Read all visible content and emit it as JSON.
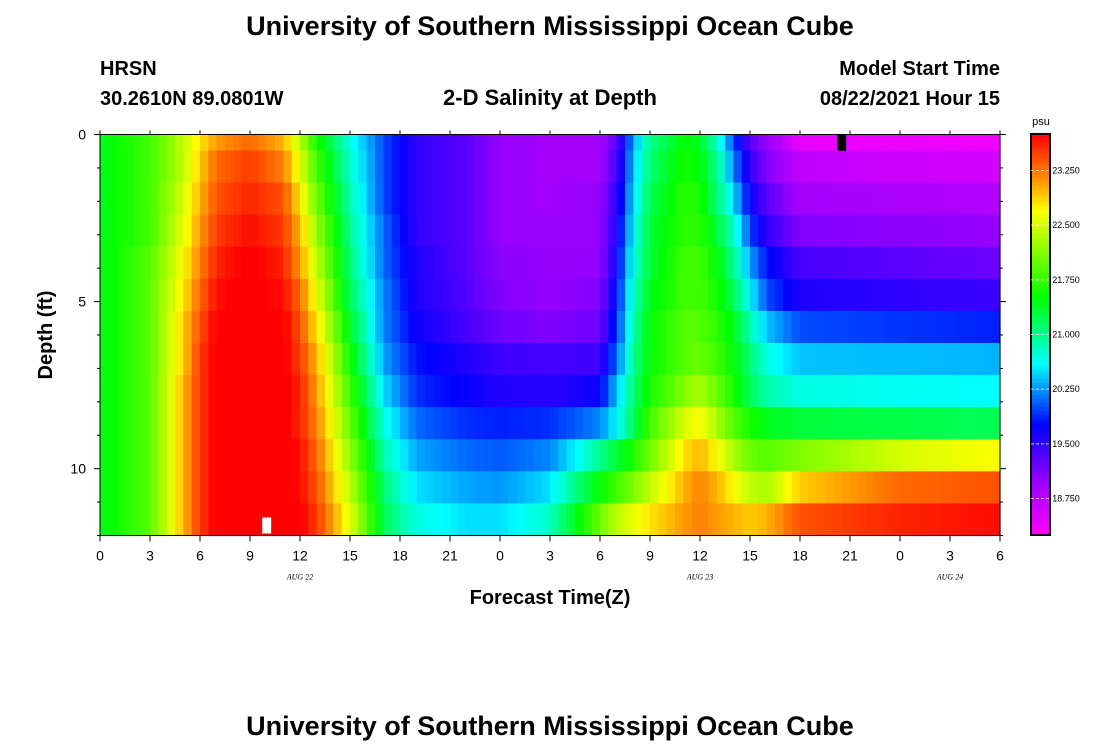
{
  "header": {
    "title": "University of Southern Mississippi Ocean Cube",
    "station": "HRSN",
    "location": "30.2610N  89.0801W",
    "plot_title": "2-D Salinity at Depth",
    "model_label": "Model Start Time",
    "model_time": "08/22/2021 Hour 15"
  },
  "footer": {
    "title": "University of Southern Mississippi Ocean Cube"
  },
  "chart_data": {
    "type": "heatmap",
    "title": "2-D Salinity at Depth",
    "xlabel": "Forecast Time(Z)",
    "ylabel": "Depth (ft)",
    "x_hours_range": [
      0,
      54
    ],
    "x_tick_labels": [
      "0",
      "3",
      "6",
      "9",
      "12",
      "15",
      "18",
      "21",
      "0",
      "3",
      "6",
      "9",
      "12",
      "15",
      "18",
      "21",
      "0",
      "3",
      "6"
    ],
    "day_labels": [
      {
        "label": "AUG  22",
        "hour": 12
      },
      {
        "label": "AUG  23",
        "hour": 36
      },
      {
        "label": "AUG  24",
        "hour": 51
      }
    ],
    "y_range_ft": [
      0,
      12
    ],
    "y_ticks": [
      0,
      5,
      10
    ],
    "colorbar": {
      "unit": "psu",
      "range": [
        18.25,
        23.75
      ],
      "tick_labels": [
        "23.250",
        "22.500",
        "21.750",
        "21.000",
        "20.250",
        "19.500",
        "18.750"
      ],
      "tick_values": [
        23.25,
        22.5,
        21.75,
        21.0,
        20.25,
        19.5,
        18.75
      ]
    },
    "markers": [
      {
        "name": "model-start-marker",
        "hour": 10,
        "depth_ft": 11.7,
        "color": "#ffffff"
      },
      {
        "name": "current-time-marker",
        "hour": 44.5,
        "depth_ft": 0.25,
        "color": "#000000"
      }
    ],
    "depth_rows_ft": [
      0,
      1,
      2,
      3,
      4,
      5,
      6,
      7,
      8,
      9,
      10,
      11,
      12
    ],
    "profiles": [
      [
        [
          0,
          21.4
        ],
        [
          3,
          21.8
        ],
        [
          5,
          22.4
        ],
        [
          6,
          22.8
        ],
        [
          7,
          23.1
        ],
        [
          9,
          23.3
        ],
        [
          11,
          23.0
        ],
        [
          12,
          22.4
        ],
        [
          13,
          21.6
        ],
        [
          15,
          20.7
        ],
        [
          17,
          20.0
        ],
        [
          19,
          19.5
        ],
        [
          22,
          19.3
        ],
        [
          24,
          19.0
        ],
        [
          27,
          18.9
        ],
        [
          30,
          18.9
        ],
        [
          31,
          19.3
        ],
        [
          32,
          20.3
        ],
        [
          33,
          21.0
        ],
        [
          35,
          21.5
        ],
        [
          36,
          21.4
        ],
        [
          37,
          20.8
        ],
        [
          38,
          20.0
        ],
        [
          39,
          19.3
        ],
        [
          42,
          18.4
        ],
        [
          54,
          18.35
        ]
      ],
      [
        [
          0,
          21.4
        ],
        [
          3,
          21.8
        ],
        [
          5,
          22.4
        ],
        [
          6,
          22.9
        ],
        [
          7,
          23.3
        ],
        [
          9,
          23.5
        ],
        [
          11,
          23.2
        ],
        [
          12,
          22.6
        ],
        [
          13,
          21.8
        ],
        [
          15,
          20.8
        ],
        [
          17,
          20.0
        ],
        [
          19,
          19.5
        ],
        [
          22,
          19.3
        ],
        [
          24,
          19.0
        ],
        [
          27,
          18.9
        ],
        [
          30,
          18.9
        ],
        [
          31,
          19.4
        ],
        [
          32,
          20.4
        ],
        [
          33,
          21.1
        ],
        [
          35,
          21.6
        ],
        [
          36,
          21.5
        ],
        [
          37,
          21.0
        ],
        [
          38,
          20.2
        ],
        [
          39,
          19.5
        ],
        [
          40,
          19.1
        ],
        [
          42,
          18.7
        ],
        [
          54,
          18.55
        ]
      ],
      [
        [
          0,
          21.4
        ],
        [
          3,
          21.8
        ],
        [
          5,
          22.5
        ],
        [
          6,
          23.0
        ],
        [
          7,
          23.4
        ],
        [
          9,
          23.6
        ],
        [
          11,
          23.4
        ],
        [
          12,
          22.8
        ],
        [
          13,
          22.0
        ],
        [
          15,
          20.9
        ],
        [
          17,
          20.0
        ],
        [
          19,
          19.5
        ],
        [
          22,
          19.3
        ],
        [
          24,
          19.0
        ],
        [
          27,
          18.9
        ],
        [
          30,
          19.0
        ],
        [
          31,
          19.5
        ],
        [
          32,
          20.5
        ],
        [
          33,
          21.2
        ],
        [
          35,
          21.7
        ],
        [
          36,
          21.6
        ],
        [
          37,
          21.1
        ],
        [
          38,
          20.5
        ],
        [
          39,
          19.7
        ],
        [
          40,
          19.3
        ],
        [
          42,
          18.9
        ],
        [
          54,
          18.8
        ]
      ],
      [
        [
          0,
          21.4
        ],
        [
          3,
          21.8
        ],
        [
          5,
          22.6
        ],
        [
          6,
          23.1
        ],
        [
          7,
          23.5
        ],
        [
          9,
          23.7
        ],
        [
          11,
          23.5
        ],
        [
          12,
          23.0
        ],
        [
          13,
          22.2
        ],
        [
          15,
          21.0
        ],
        [
          17,
          20.1
        ],
        [
          19,
          19.5
        ],
        [
          22,
          19.3
        ],
        [
          24,
          19.0
        ],
        [
          27,
          18.95
        ],
        [
          30,
          19.0
        ],
        [
          31,
          19.6
        ],
        [
          32,
          20.6
        ],
        [
          33,
          21.3
        ],
        [
          35,
          21.7
        ],
        [
          36,
          21.7
        ],
        [
          37,
          21.3
        ],
        [
          38,
          20.8
        ],
        [
          39,
          20.0
        ],
        [
          40,
          19.5
        ],
        [
          42,
          19.1
        ],
        [
          54,
          19.0
        ]
      ],
      [
        [
          0,
          21.4
        ],
        [
          3,
          21.9
        ],
        [
          5,
          22.7
        ],
        [
          6,
          23.2
        ],
        [
          7,
          23.6
        ],
        [
          9,
          23.8
        ],
        [
          11,
          23.6
        ],
        [
          12,
          23.1
        ],
        [
          13,
          22.4
        ],
        [
          15,
          21.1
        ],
        [
          17,
          20.1
        ],
        [
          19,
          19.6
        ],
        [
          22,
          19.3
        ],
        [
          24,
          19.05
        ],
        [
          27,
          19.0
        ],
        [
          30,
          19.0
        ],
        [
          31,
          19.7
        ],
        [
          32,
          20.7
        ],
        [
          33,
          21.3
        ],
        [
          35,
          21.8
        ],
        [
          36,
          21.8
        ],
        [
          37,
          21.5
        ],
        [
          38,
          21.0
        ],
        [
          39,
          20.3
        ],
        [
          40,
          19.8
        ],
        [
          42,
          19.4
        ],
        [
          54,
          19.2
        ]
      ],
      [
        [
          0,
          21.4
        ],
        [
          3,
          21.9
        ],
        [
          5,
          22.8
        ],
        [
          6,
          23.3
        ],
        [
          7,
          23.7
        ],
        [
          9,
          23.8
        ],
        [
          11,
          23.7
        ],
        [
          12,
          23.3
        ],
        [
          13,
          22.6
        ],
        [
          15,
          21.2
        ],
        [
          17,
          20.2
        ],
        [
          19,
          19.6
        ],
        [
          22,
          19.35
        ],
        [
          24,
          19.1
        ],
        [
          27,
          19.0
        ],
        [
          30,
          19.1
        ],
        [
          31,
          19.8
        ],
        [
          32,
          20.8
        ],
        [
          33,
          21.4
        ],
        [
          35,
          21.8
        ],
        [
          36,
          21.8
        ],
        [
          37,
          21.6
        ],
        [
          38,
          21.2
        ],
        [
          39,
          20.6
        ],
        [
          40,
          20.0
        ],
        [
          42,
          19.6
        ],
        [
          54,
          19.45
        ]
      ],
      [
        [
          0,
          21.4
        ],
        [
          3,
          21.9
        ],
        [
          5,
          22.9
        ],
        [
          6,
          23.4
        ],
        [
          7,
          23.8
        ],
        [
          9,
          23.9
        ],
        [
          11,
          23.8
        ],
        [
          12,
          23.4
        ],
        [
          13,
          22.8
        ],
        [
          15,
          21.4
        ],
        [
          17,
          20.2
        ],
        [
          19,
          19.7
        ],
        [
          22,
          19.4
        ],
        [
          24,
          19.2
        ],
        [
          27,
          19.1
        ],
        [
          30,
          19.2
        ],
        [
          31,
          19.9
        ],
        [
          32,
          20.9
        ],
        [
          33,
          21.5
        ],
        [
          35,
          21.9
        ],
        [
          36,
          21.9
        ],
        [
          37,
          21.7
        ],
        [
          38,
          21.4
        ],
        [
          39,
          20.9
        ],
        [
          40,
          20.4
        ],
        [
          42,
          20.0
        ],
        [
          54,
          19.85
        ]
      ],
      [
        [
          0,
          21.4
        ],
        [
          3,
          21.9
        ],
        [
          5,
          22.9
        ],
        [
          6,
          23.5
        ],
        [
          7,
          23.8
        ],
        [
          9,
          23.9
        ],
        [
          11,
          23.8
        ],
        [
          12,
          23.5
        ],
        [
          13,
          23.0
        ],
        [
          15,
          21.6
        ],
        [
          17,
          20.3
        ],
        [
          19,
          19.8
        ],
        [
          22,
          19.6
        ],
        [
          24,
          19.45
        ],
        [
          27,
          19.4
        ],
        [
          30,
          19.45
        ],
        [
          31,
          20.1
        ],
        [
          32,
          21.0
        ],
        [
          33,
          21.5
        ],
        [
          35,
          21.9
        ],
        [
          36,
          22.0
        ],
        [
          37,
          21.8
        ],
        [
          38,
          21.5
        ],
        [
          39,
          21.1
        ],
        [
          40,
          20.7
        ],
        [
          42,
          20.4
        ],
        [
          54,
          20.35
        ]
      ],
      [
        [
          0,
          21.4
        ],
        [
          3,
          21.9
        ],
        [
          5,
          23.0
        ],
        [
          6,
          23.5
        ],
        [
          7,
          23.8
        ],
        [
          9,
          23.9
        ],
        [
          11,
          23.8
        ],
        [
          12,
          23.6
        ],
        [
          13,
          23.1
        ],
        [
          15,
          21.8
        ],
        [
          17,
          20.5
        ],
        [
          19,
          19.9
        ],
        [
          22,
          19.7
        ],
        [
          24,
          19.6
        ],
        [
          27,
          19.55
        ],
        [
          30,
          19.7
        ],
        [
          31,
          20.4
        ],
        [
          32,
          21.1
        ],
        [
          33,
          21.6
        ],
        [
          35,
          22.1
        ],
        [
          36,
          22.3
        ],
        [
          37,
          22.0
        ],
        [
          38,
          21.6
        ],
        [
          39,
          21.2
        ],
        [
          40,
          20.9
        ],
        [
          42,
          20.7
        ],
        [
          54,
          20.6
        ]
      ],
      [
        [
          0,
          21.4
        ],
        [
          3,
          21.9
        ],
        [
          5,
          23.0
        ],
        [
          6,
          23.5
        ],
        [
          7,
          23.8
        ],
        [
          9,
          23.9
        ],
        [
          11,
          23.8
        ],
        [
          12,
          23.6
        ],
        [
          13,
          23.2
        ],
        [
          15,
          22.0
        ],
        [
          17,
          20.7
        ],
        [
          19,
          20.1
        ],
        [
          22,
          19.9
        ],
        [
          24,
          19.85
        ],
        [
          27,
          19.9
        ],
        [
          30,
          20.2
        ],
        [
          31,
          20.6
        ],
        [
          32,
          21.2
        ],
        [
          33,
          21.8
        ],
        [
          35,
          22.5
        ],
        [
          36,
          22.7
        ],
        [
          37,
          22.3
        ],
        [
          38,
          21.9
        ],
        [
          39,
          21.6
        ],
        [
          40,
          21.4
        ],
        [
          42,
          21.3
        ],
        [
          54,
          21.2
        ]
      ],
      [
        [
          0,
          21.4
        ],
        [
          3,
          21.9
        ],
        [
          5,
          23.0
        ],
        [
          6,
          23.5
        ],
        [
          7,
          23.8
        ],
        [
          9,
          23.9
        ],
        [
          11,
          23.85
        ],
        [
          12,
          23.7
        ],
        [
          13,
          23.3
        ],
        [
          15,
          22.2
        ],
        [
          17,
          20.9
        ],
        [
          19,
          20.3
        ],
        [
          22,
          20.1
        ],
        [
          24,
          20.05
        ],
        [
          27,
          20.2
        ],
        [
          29,
          20.7
        ],
        [
          31,
          21.3
        ],
        [
          33,
          22.0
        ],
        [
          35,
          22.8
        ],
        [
          36,
          23.0
        ],
        [
          37,
          22.7
        ],
        [
          38,
          22.3
        ],
        [
          39,
          22.0
        ],
        [
          40,
          21.9
        ],
        [
          42,
          22.1
        ],
        [
          48,
          22.5
        ],
        [
          54,
          22.7
        ]
      ],
      [
        [
          0,
          21.4
        ],
        [
          3,
          21.9
        ],
        [
          5,
          23.0
        ],
        [
          6,
          23.5
        ],
        [
          7,
          23.8
        ],
        [
          9,
          23.9
        ],
        [
          11,
          23.85
        ],
        [
          12,
          23.7
        ],
        [
          13,
          23.4
        ],
        [
          15,
          22.4
        ],
        [
          17,
          21.1
        ],
        [
          19,
          20.5
        ],
        [
          22,
          20.3
        ],
        [
          24,
          20.25
        ],
        [
          27,
          20.5
        ],
        [
          29,
          21.2
        ],
        [
          31,
          21.8
        ],
        [
          33,
          22.4
        ],
        [
          35,
          23.0
        ],
        [
          36,
          23.2
        ],
        [
          37,
          23.0
        ],
        [
          38,
          22.7
        ],
        [
          39,
          22.4
        ],
        [
          40,
          22.3
        ],
        [
          42,
          22.9
        ],
        [
          48,
          23.3
        ],
        [
          54,
          23.4
        ]
      ],
      [
        [
          0,
          21.4
        ],
        [
          3,
          21.9
        ],
        [
          5,
          23.0
        ],
        [
          6,
          23.5
        ],
        [
          7,
          23.8
        ],
        [
          9,
          23.9
        ],
        [
          11,
          23.9
        ],
        [
          12,
          23.8
        ],
        [
          13,
          23.5
        ],
        [
          15,
          22.6
        ],
        [
          17,
          21.2
        ],
        [
          19,
          20.7
        ],
        [
          22,
          20.5
        ],
        [
          24,
          20.5
        ],
        [
          27,
          20.8
        ],
        [
          29,
          21.6
        ],
        [
          31,
          22.4
        ],
        [
          33,
          22.8
        ],
        [
          35,
          23.1
        ],
        [
          36,
          23.2
        ],
        [
          37,
          23.1
        ],
        [
          38,
          23.0
        ],
        [
          39,
          22.9
        ],
        [
          40,
          23.0
        ],
        [
          42,
          23.4
        ],
        [
          48,
          23.6
        ],
        [
          54,
          23.7
        ]
      ]
    ]
  }
}
